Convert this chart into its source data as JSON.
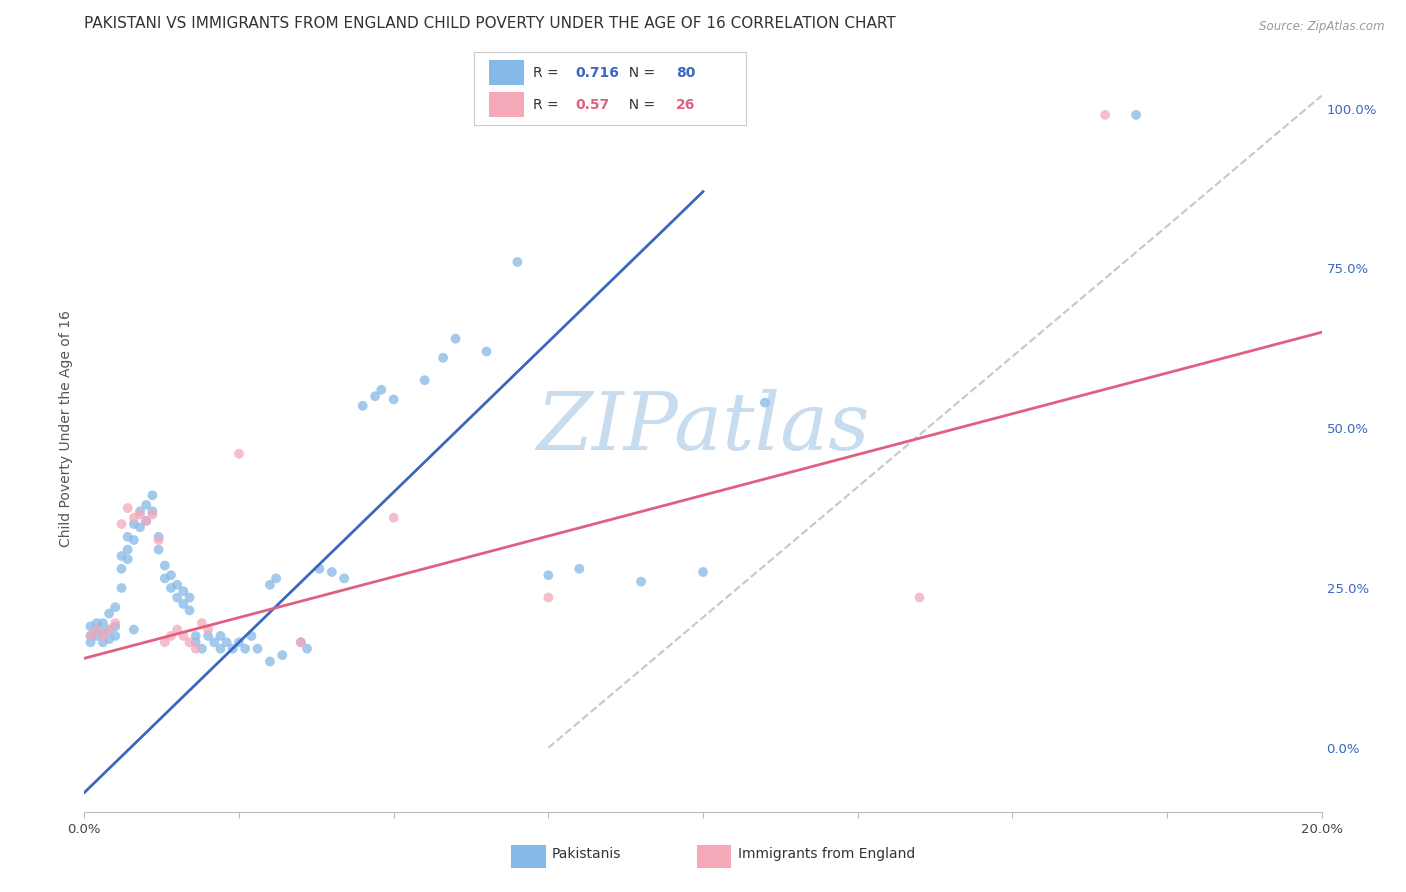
{
  "title": "PAKISTANI VS IMMIGRANTS FROM ENGLAND CHILD POVERTY UNDER THE AGE OF 16 CORRELATION CHART",
  "source": "Source: ZipAtlas.com",
  "ylabel": "Child Poverty Under the Age of 16",
  "xmin": 0.0,
  "xmax": 0.2,
  "ymin": -0.1,
  "ymax": 1.1,
  "right_yticks": [
    0.0,
    0.25,
    0.5,
    0.75,
    1.0
  ],
  "right_yticklabels": [
    "0.0%",
    "25.0%",
    "50.0%",
    "75.0%",
    "100.0%"
  ],
  "blue_R": 0.716,
  "blue_N": 80,
  "pink_R": 0.57,
  "pink_N": 26,
  "blue_color": "#85B9E8",
  "pink_color": "#F4A8B8",
  "blue_line_color": "#3A68C0",
  "pink_line_color": "#E06080",
  "ref_line_color": "#C0C8D0",
  "blue_line": [
    0.0,
    -0.07,
    0.1,
    0.87
  ],
  "pink_line": [
    0.0,
    0.14,
    0.2,
    0.65
  ],
  "ref_line": [
    0.075,
    0.0,
    0.2,
    1.02
  ],
  "blue_scatter": [
    [
      0.001,
      0.175
    ],
    [
      0.001,
      0.19
    ],
    [
      0.001,
      0.165
    ],
    [
      0.002,
      0.185
    ],
    [
      0.002,
      0.195
    ],
    [
      0.002,
      0.175
    ],
    [
      0.003,
      0.195
    ],
    [
      0.003,
      0.18
    ],
    [
      0.003,
      0.165
    ],
    [
      0.004,
      0.21
    ],
    [
      0.004,
      0.185
    ],
    [
      0.004,
      0.17
    ],
    [
      0.005,
      0.22
    ],
    [
      0.005,
      0.19
    ],
    [
      0.005,
      0.175
    ],
    [
      0.006,
      0.3
    ],
    [
      0.006,
      0.28
    ],
    [
      0.006,
      0.25
    ],
    [
      0.007,
      0.33
    ],
    [
      0.007,
      0.31
    ],
    [
      0.007,
      0.295
    ],
    [
      0.008,
      0.35
    ],
    [
      0.008,
      0.325
    ],
    [
      0.008,
      0.185
    ],
    [
      0.009,
      0.37
    ],
    [
      0.009,
      0.345
    ],
    [
      0.01,
      0.38
    ],
    [
      0.01,
      0.355
    ],
    [
      0.011,
      0.395
    ],
    [
      0.011,
      0.37
    ],
    [
      0.012,
      0.33
    ],
    [
      0.012,
      0.31
    ],
    [
      0.013,
      0.285
    ],
    [
      0.013,
      0.265
    ],
    [
      0.014,
      0.27
    ],
    [
      0.014,
      0.25
    ],
    [
      0.015,
      0.255
    ],
    [
      0.015,
      0.235
    ],
    [
      0.016,
      0.245
    ],
    [
      0.016,
      0.225
    ],
    [
      0.017,
      0.235
    ],
    [
      0.017,
      0.215
    ],
    [
      0.018,
      0.175
    ],
    [
      0.018,
      0.165
    ],
    [
      0.019,
      0.155
    ],
    [
      0.02,
      0.175
    ],
    [
      0.021,
      0.165
    ],
    [
      0.022,
      0.175
    ],
    [
      0.022,
      0.155
    ],
    [
      0.023,
      0.165
    ],
    [
      0.024,
      0.155
    ],
    [
      0.025,
      0.165
    ],
    [
      0.026,
      0.155
    ],
    [
      0.027,
      0.175
    ],
    [
      0.028,
      0.155
    ],
    [
      0.03,
      0.255
    ],
    [
      0.03,
      0.135
    ],
    [
      0.031,
      0.265
    ],
    [
      0.032,
      0.145
    ],
    [
      0.035,
      0.165
    ],
    [
      0.036,
      0.155
    ],
    [
      0.038,
      0.28
    ],
    [
      0.04,
      0.275
    ],
    [
      0.042,
      0.265
    ],
    [
      0.045,
      0.535
    ],
    [
      0.047,
      0.55
    ],
    [
      0.048,
      0.56
    ],
    [
      0.05,
      0.545
    ],
    [
      0.055,
      0.575
    ],
    [
      0.058,
      0.61
    ],
    [
      0.06,
      0.64
    ],
    [
      0.065,
      0.62
    ],
    [
      0.068,
      1.02
    ],
    [
      0.07,
      0.76
    ],
    [
      0.075,
      0.27
    ],
    [
      0.08,
      0.28
    ],
    [
      0.09,
      0.26
    ],
    [
      0.1,
      0.275
    ],
    [
      0.11,
      0.54
    ],
    [
      0.17,
      0.99
    ]
  ],
  "pink_scatter": [
    [
      0.001,
      0.175
    ],
    [
      0.002,
      0.185
    ],
    [
      0.003,
      0.175
    ],
    [
      0.004,
      0.185
    ],
    [
      0.005,
      0.195
    ],
    [
      0.006,
      0.35
    ],
    [
      0.007,
      0.375
    ],
    [
      0.008,
      0.36
    ],
    [
      0.009,
      0.365
    ],
    [
      0.01,
      0.355
    ],
    [
      0.011,
      0.365
    ],
    [
      0.012,
      0.325
    ],
    [
      0.013,
      0.165
    ],
    [
      0.014,
      0.175
    ],
    [
      0.015,
      0.185
    ],
    [
      0.016,
      0.175
    ],
    [
      0.017,
      0.165
    ],
    [
      0.018,
      0.155
    ],
    [
      0.019,
      0.195
    ],
    [
      0.02,
      0.185
    ],
    [
      0.025,
      0.46
    ],
    [
      0.035,
      0.165
    ],
    [
      0.05,
      0.36
    ],
    [
      0.075,
      0.235
    ],
    [
      0.135,
      0.235
    ],
    [
      0.165,
      0.99
    ]
  ],
  "watermark_text": "ZIPatlas",
  "watermark_color": "#C8DCF0",
  "title_fontsize": 11,
  "tick_fontsize": 9.5,
  "label_fontsize": 10
}
